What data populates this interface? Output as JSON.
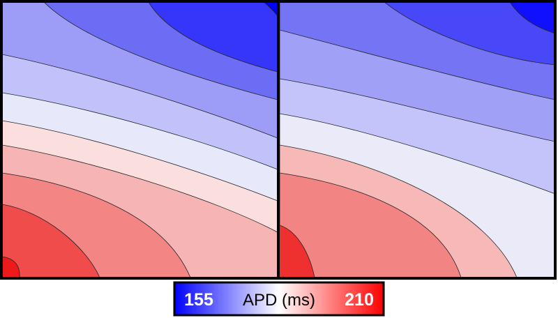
{
  "chart_data": {
    "type": "contour",
    "colorbar": {
      "label": "APD (ms)",
      "lim": [
        155,
        210
      ],
      "ticks": [
        155,
        210
      ],
      "colors": [
        "#0000ff",
        "#ffffff",
        "#ff0000"
      ]
    }
  }
}
